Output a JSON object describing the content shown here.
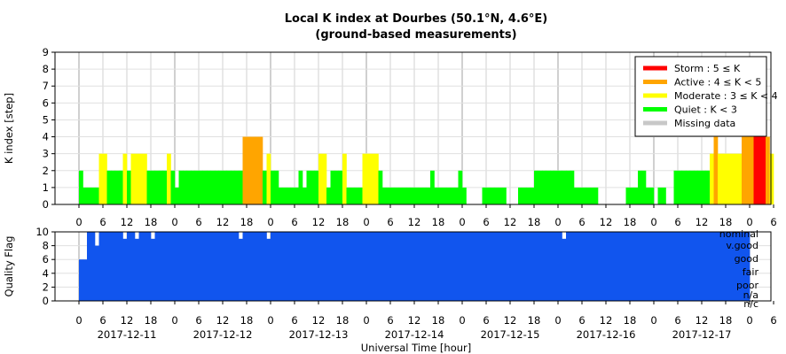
{
  "chart_data": [
    {
      "type": "bar",
      "title": "Local K index at Dourbes (50.1°N, 4.6°E)",
      "subtitle": "(ground-based measurements)",
      "ylabel": "K index [step]",
      "ylim": [
        0,
        9
      ],
      "yticks": [
        "0",
        "1",
        "2",
        "3",
        "4",
        "5",
        "6",
        "7",
        "8",
        "9"
      ],
      "grid": true,
      "legend_position": "top-right",
      "legend": [
        {
          "label": "Storm : 5 ≤ K",
          "color": "#ff0000"
        },
        {
          "label": "Active : 4 ≤ K < 5",
          "color": "#ffa500"
        },
        {
          "label": "Moderate : 3 ≤ K < 4",
          "color": "#ffff00"
        },
        {
          "label": "Quiet : K < 3",
          "color": "#00ff00"
        },
        {
          "label": "Missing data",
          "color": "#c8c8c8"
        }
      ],
      "x_start_hour": 0,
      "x_end_hour": 168,
      "bar_width_hours": 1,
      "values": [
        2,
        1,
        1,
        1,
        1,
        3,
        3,
        2,
        2,
        2,
        2,
        3,
        2,
        3,
        3,
        3,
        3,
        2,
        2,
        2,
        2,
        2,
        3,
        2,
        1,
        2,
        2,
        2,
        2,
        2,
        2,
        2,
        2,
        2,
        2,
        2,
        2,
        2,
        2,
        2,
        2,
        4,
        4,
        4,
        4,
        4,
        2,
        3,
        2,
        2,
        1,
        1,
        1,
        1,
        1,
        2,
        1,
        2,
        2,
        2,
        3,
        3,
        1,
        2,
        2,
        2,
        3,
        1,
        1,
        1,
        1,
        3,
        3,
        3,
        3,
        2,
        1,
        1,
        1,
        1,
        1,
        1,
        1,
        1,
        1,
        1,
        1,
        1,
        2,
        1,
        1,
        1,
        1,
        1,
        1,
        2,
        1,
        0,
        0,
        0,
        0,
        1,
        1,
        1,
        1,
        1,
        1,
        0,
        0,
        0,
        1,
        1,
        1,
        1,
        2,
        2,
        2,
        2,
        2,
        2,
        2,
        2,
        2,
        2,
        1,
        1,
        1,
        1,
        1,
        1,
        0,
        0,
        0,
        0,
        0,
        0,
        0,
        1,
        1,
        1,
        2,
        2,
        1,
        1,
        0,
        1,
        1,
        0,
        0,
        2,
        2,
        2,
        2,
        2,
        2,
        2,
        2,
        2,
        3,
        4,
        3,
        3,
        3,
        3,
        3,
        3,
        4,
        4,
        4,
        5,
        5,
        5,
        4,
        3
      ]
    },
    {
      "type": "bar",
      "ylabel": "Quality Flag",
      "ylim": [
        0,
        10
      ],
      "yticks": [
        "0",
        "2",
        "4",
        "6",
        "8",
        "10"
      ],
      "grid": true,
      "color": "#1155ee",
      "category_labels": [
        "nominal",
        "v.good",
        "good",
        "fair",
        "poor",
        "n/a",
        "n/c"
      ],
      "xlabel": "Universal Time [hour]",
      "hour_ticks": [
        "0",
        "6",
        "12",
        "18",
        "0",
        "6",
        "12",
        "18",
        "0",
        "6",
        "12",
        "18",
        "0",
        "6",
        "12",
        "18",
        "0",
        "6",
        "12",
        "18",
        "0",
        "6",
        "12",
        "18",
        "0",
        "6",
        "12",
        "18",
        "0",
        "6",
        "12",
        "18",
        "0"
      ],
      "day_labels": [
        "2017-12-11",
        "2017-12-12",
        "2017-12-13",
        "2017-12-14",
        "2017-12-15",
        "2017-12-16",
        "2017-12-17"
      ],
      "values": [
        6,
        6,
        10,
        10,
        8,
        10,
        10,
        10,
        10,
        10,
        10,
        9,
        10,
        10,
        9,
        10,
        10,
        10,
        9,
        10,
        10,
        10,
        10,
        10,
        10,
        10,
        10,
        10,
        10,
        10,
        10,
        10,
        10,
        10,
        10,
        10,
        10,
        10,
        10,
        10,
        9,
        10,
        10,
        10,
        10,
        10,
        10,
        9,
        10,
        10,
        10,
        10,
        10,
        10,
        10,
        10,
        10,
        10,
        10,
        10,
        10,
        10,
        10,
        10,
        10,
        10,
        10,
        10,
        10,
        10,
        10,
        10,
        10,
        10,
        10,
        10,
        10,
        10,
        10,
        10,
        10,
        10,
        10,
        10,
        10,
        10,
        10,
        10,
        10,
        10,
        10,
        10,
        10,
        10,
        10,
        10,
        10,
        10,
        10,
        10,
        10,
        10,
        10,
        10,
        10,
        10,
        10,
        10,
        10,
        10,
        10,
        10,
        10,
        10,
        10,
        10,
        10,
        10,
        10,
        10,
        10,
        9,
        10,
        10,
        10,
        10,
        10,
        10,
        10,
        10,
        10,
        10,
        10,
        10,
        10,
        10,
        10,
        10,
        10,
        10,
        10,
        10,
        10,
        10,
        10,
        10,
        10,
        10,
        10,
        10,
        10,
        10,
        10,
        10,
        10,
        10,
        10,
        10,
        10,
        10,
        10,
        10,
        10,
        10,
        10,
        10,
        10,
        10
      ]
    }
  ]
}
